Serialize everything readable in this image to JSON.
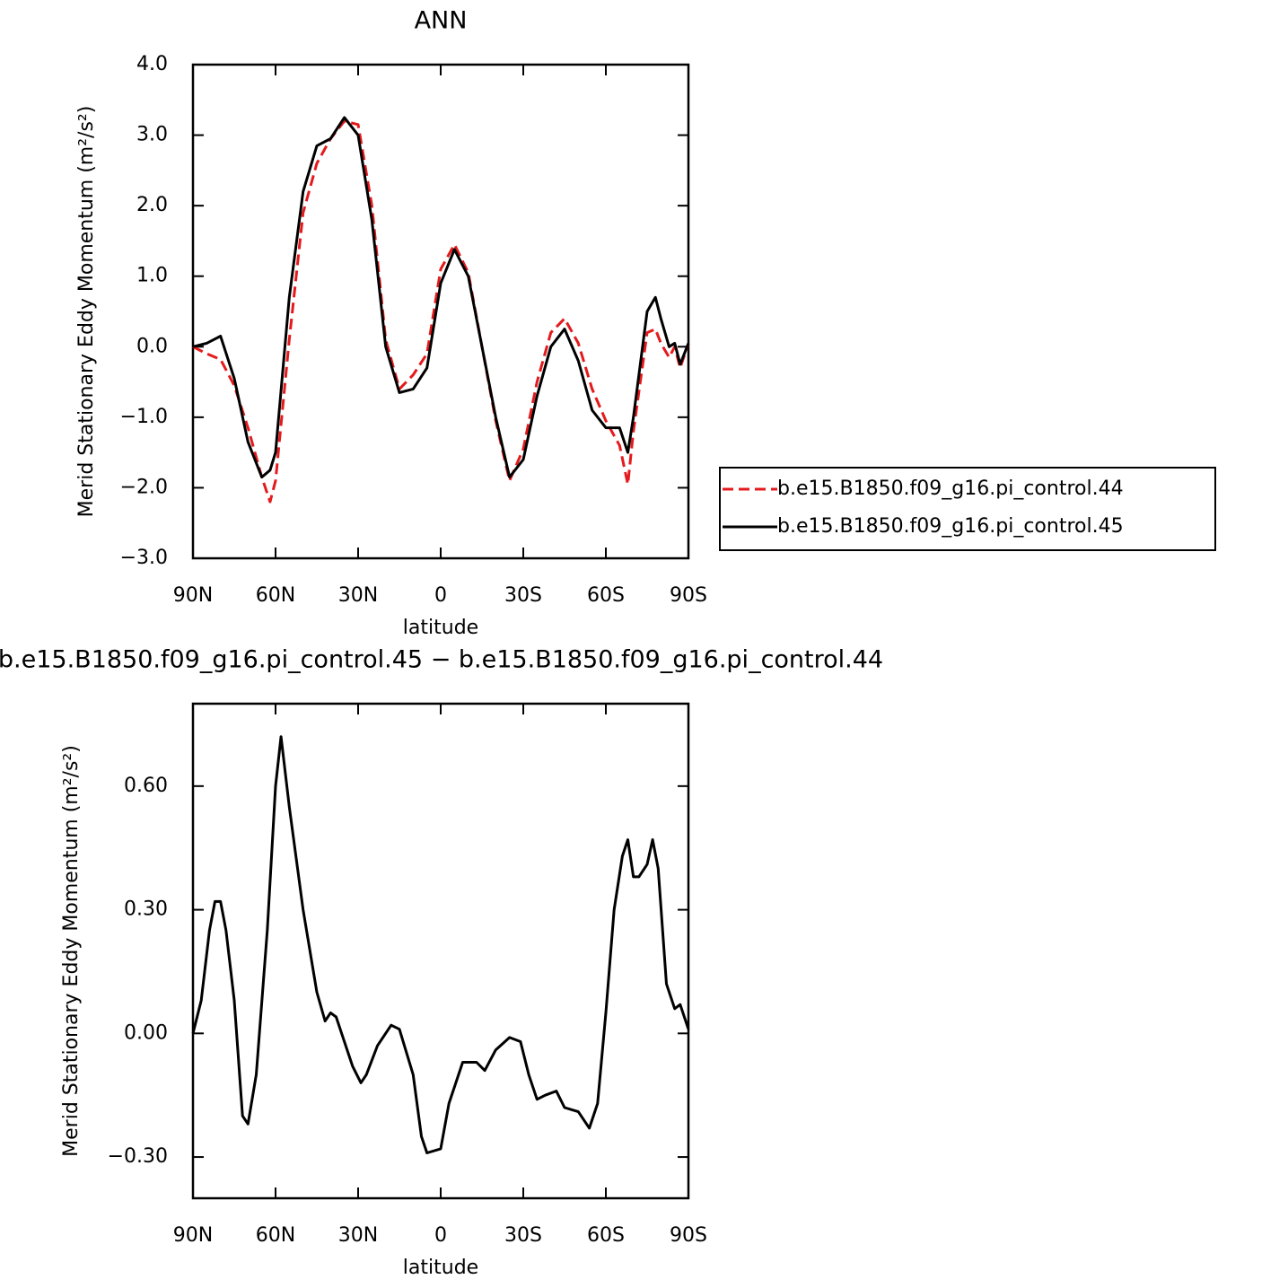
{
  "chart_data": [
    {
      "type": "line",
      "title": "ANN",
      "xlabel": "latitude",
      "ylabel": "Merid Stationary Eddy Momentum (m²/s²)",
      "x": [
        90,
        85,
        80,
        75,
        70,
        65,
        62,
        60,
        55,
        50,
        45,
        40,
        35,
        30,
        25,
        20,
        15,
        10,
        5,
        0,
        -5,
        -10,
        -15,
        -20,
        -25,
        -30,
        -35,
        -40,
        -45,
        -50,
        -55,
        -60,
        -65,
        -68,
        -70,
        -75,
        -78,
        -80,
        -83,
        -85,
        -87,
        -90
      ],
      "series": [
        {
          "name": "b.e15.B1850.f09_g16.pi_control.44",
          "color": "#e41a1c",
          "dashed": true,
          "values": [
            0.0,
            -0.1,
            -0.18,
            -0.55,
            -1.15,
            -1.85,
            -2.2,
            -1.9,
            0.1,
            1.9,
            2.6,
            2.95,
            3.2,
            3.15,
            2.0,
            0.1,
            -0.6,
            -0.4,
            -0.1,
            1.1,
            1.45,
            1.05,
            0.0,
            -1.05,
            -1.9,
            -1.45,
            -0.5,
            0.2,
            0.4,
            0.05,
            -0.6,
            -1.05,
            -1.4,
            -1.95,
            -1.2,
            0.2,
            0.25,
            0.05,
            -0.15,
            0.0,
            -0.3,
            0.05
          ]
        },
        {
          "name": "b.e15.B1850.f09_g16.pi_control.45",
          "color": "#000000",
          "dashed": false,
          "values": [
            0.0,
            0.05,
            0.15,
            -0.45,
            -1.35,
            -1.85,
            -1.75,
            -1.5,
            0.7,
            2.2,
            2.85,
            2.95,
            3.25,
            3.0,
            1.8,
            0.0,
            -0.65,
            -0.6,
            -0.3,
            0.9,
            1.38,
            1.0,
            0.0,
            -1.0,
            -1.85,
            -1.6,
            -0.7,
            0.0,
            0.25,
            -0.2,
            -0.9,
            -1.15,
            -1.15,
            -1.5,
            -1.0,
            0.5,
            0.7,
            0.4,
            0.0,
            0.05,
            -0.25,
            0.05
          ]
        }
      ],
      "xlim": [
        90,
        -90
      ],
      "xticks": [
        {
          "value": 90,
          "label": "90N"
        },
        {
          "value": 60,
          "label": "60N"
        },
        {
          "value": 30,
          "label": "30N"
        },
        0,
        {
          "value": -30,
          "label": "30S"
        },
        {
          "value": -60,
          "label": "60S"
        },
        {
          "value": -90,
          "label": "90S"
        }
      ],
      "ylim": [
        -3,
        4
      ],
      "yticks": [
        {
          "value": 4,
          "label": "4.0"
        },
        {
          "value": 3,
          "label": "3.0"
        },
        {
          "value": 2,
          "label": "2.0"
        },
        {
          "value": 1,
          "label": "1.0"
        },
        {
          "value": 0,
          "label": "0.0"
        },
        {
          "value": -1,
          "label": "−1.0"
        },
        {
          "value": -2,
          "label": "−2.0"
        },
        {
          "value": -3,
          "label": "−3.0"
        }
      ],
      "legend": true
    },
    {
      "type": "line",
      "title": "b.e15.B1850.f09_g16.pi_control.45 − b.e15.B1850.f09_g16.pi_control.44",
      "xlabel": "latitude",
      "ylabel": "Merid Stationary Eddy Momentum (m²/s²)",
      "x": [
        90,
        87,
        84,
        82,
        80,
        78,
        75,
        72,
        70,
        67,
        63,
        60,
        58,
        55,
        50,
        45,
        42,
        40,
        38,
        36,
        32,
        29,
        27,
        23,
        18,
        15,
        10,
        7,
        5,
        0,
        -3,
        -8,
        -13,
        -16,
        -20,
        -25,
        -29,
        -32,
        -35,
        -38,
        -42,
        -45,
        -50,
        -54,
        -57,
        -60,
        -63,
        -66,
        -68,
        -70,
        -72,
        -75,
        -77,
        -79,
        -82,
        -85,
        -87,
        -90
      ],
      "series": [
        {
          "name": null,
          "color": "#000000",
          "dashed": false,
          "values": [
            0.0,
            0.08,
            0.25,
            0.32,
            0.32,
            0.25,
            0.08,
            -0.2,
            -0.22,
            -0.1,
            0.25,
            0.6,
            0.72,
            0.55,
            0.3,
            0.1,
            0.03,
            0.05,
            0.04,
            0.0,
            -0.08,
            -0.12,
            -0.1,
            -0.03,
            0.02,
            0.01,
            -0.1,
            -0.25,
            -0.29,
            -0.28,
            -0.17,
            -0.07,
            -0.07,
            -0.09,
            -0.04,
            -0.01,
            -0.02,
            -0.1,
            -0.16,
            -0.15,
            -0.14,
            -0.18,
            -0.19,
            -0.23,
            -0.17,
            0.05,
            0.3,
            0.43,
            0.47,
            0.38,
            0.38,
            0.41,
            0.47,
            0.4,
            0.12,
            0.06,
            0.07,
            0.01
          ]
        }
      ],
      "xlim": [
        90,
        -90
      ],
      "xticks": [
        {
          "value": 90,
          "label": "90N"
        },
        {
          "value": 60,
          "label": "60N"
        },
        {
          "value": 30,
          "label": "30N"
        },
        0,
        {
          "value": -30,
          "label": "30S"
        },
        {
          "value": -60,
          "label": "60S"
        },
        {
          "value": -90,
          "label": "90S"
        }
      ],
      "ylim": [
        -0.4,
        0.8
      ],
      "yticks": [
        {
          "value": 0.6,
          "label": "0.60"
        },
        {
          "value": 0.3,
          "label": "0.30"
        },
        {
          "value": 0,
          "label": "0.00"
        },
        {
          "value": -0.3,
          "label": "−0.30"
        }
      ],
      "legend": false
    }
  ]
}
